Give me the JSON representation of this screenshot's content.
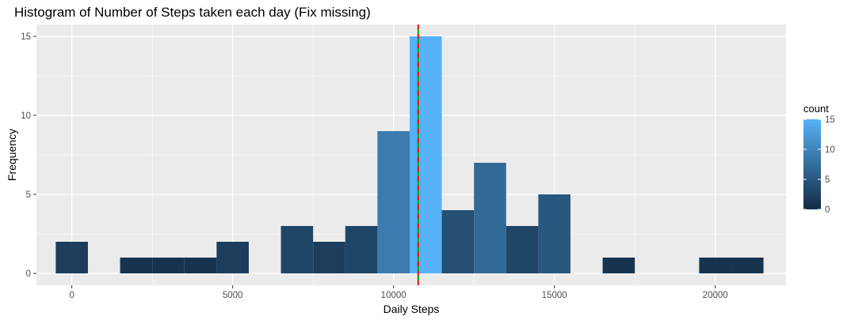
{
  "chart_data": {
    "type": "bar",
    "title": "Histogram of Number of Steps taken each day (Fix missing)",
    "xlabel": "Daily Steps",
    "ylabel": "Frequency",
    "xlim": [
      -1100,
      22200
    ],
    "ylim": [
      -0.75,
      15.75
    ],
    "x_ticks": [
      0,
      5000,
      10000,
      15000,
      20000
    ],
    "x_tick_labels": [
      "0",
      "5000",
      "10000",
      "15000",
      "20000"
    ],
    "y_ticks": [
      0,
      5,
      10,
      15
    ],
    "y_tick_labels": [
      "0",
      "5",
      "10",
      "15"
    ],
    "binwidth": 1000,
    "bins": [
      {
        "center": 0,
        "count": 2
      },
      {
        "center": 1000,
        "count": 0
      },
      {
        "center": 2000,
        "count": 1
      },
      {
        "center": 3000,
        "count": 1
      },
      {
        "center": 4000,
        "count": 1
      },
      {
        "center": 5000,
        "count": 2
      },
      {
        "center": 6000,
        "count": 0
      },
      {
        "center": 7000,
        "count": 3
      },
      {
        "center": 8000,
        "count": 2
      },
      {
        "center": 9000,
        "count": 3
      },
      {
        "center": 10000,
        "count": 9
      },
      {
        "center": 11000,
        "count": 15
      },
      {
        "center": 12000,
        "count": 4
      },
      {
        "center": 13000,
        "count": 7
      },
      {
        "center": 14000,
        "count": 3
      },
      {
        "center": 15000,
        "count": 5
      },
      {
        "center": 16000,
        "count": 0
      },
      {
        "center": 17000,
        "count": 1
      },
      {
        "center": 18000,
        "count": 0
      },
      {
        "center": 19000,
        "count": 0
      },
      {
        "center": 20000,
        "count": 1
      },
      {
        "center": 21000,
        "count": 1
      }
    ],
    "reference_lines": [
      {
        "x": 10766,
        "color": "#ff0000",
        "style": "dashed"
      },
      {
        "x": 10766,
        "color": "#00a000",
        "style": "dashed"
      }
    ],
    "legend": {
      "title": "count",
      "position": "right",
      "ticks": [
        0,
        5,
        10,
        15
      ],
      "tick_labels": [
        "0",
        "5",
        "10",
        "15"
      ],
      "color_low": "#132B43",
      "color_high": "#56B1F7",
      "range": [
        0,
        15
      ]
    },
    "grid": true,
    "panel_background": "#ebebeb",
    "gridline_color": "#ffffff"
  }
}
